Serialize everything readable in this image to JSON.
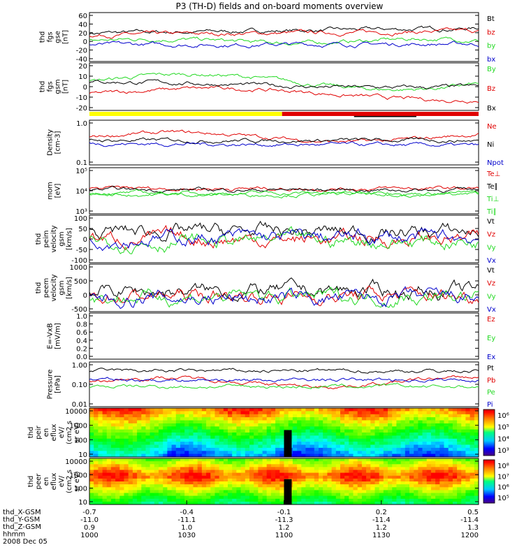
{
  "title": "P3 (TH-D) fields and on-board moments overview",
  "colors": {
    "black": "#000000",
    "red": "#e00000",
    "green": "#22d922",
    "blue": "#0000cc",
    "yellow": "#ffff00"
  },
  "time_axis": {
    "row_labels": [
      "thd_X-GSM",
      "thd_Y-GSM",
      "thd_Z-GSM",
      "hhmm",
      "2008 Dec 05"
    ],
    "ticks": [
      {
        "x": "-0.7",
        "y": "-11.0",
        "z": "0.9",
        "t": "1000"
      },
      {
        "x": "-0.4",
        "y": "-11.1",
        "z": "1.0",
        "t": "1030"
      },
      {
        "x": "-0.1",
        "y": "-11.3",
        "z": "1.2",
        "t": "1100"
      },
      {
        "x": "0.2",
        "y": "-11.4",
        "z": "1.2",
        "t": "1130"
      },
      {
        "x": "0.5",
        "y": "-11.4",
        "z": "1.3",
        "t": "1200"
      }
    ]
  },
  "chart_data": [
    {
      "type": "line",
      "ylabel": [
        "thd",
        "fgs",
        "gse",
        "[nT]"
      ],
      "yticks": [
        "60",
        "40",
        "20",
        "0",
        "-20",
        "-40"
      ],
      "yrange": [
        -40,
        60
      ],
      "legend": [
        {
          "name": "Bt",
          "color": "#000000"
        },
        {
          "name": "bz",
          "color": "#e00000"
        },
        {
          "name": "by",
          "color": "#22d922"
        },
        {
          "name": "bx",
          "color": "#0000cc"
        }
      ]
    },
    {
      "type": "line",
      "ylabel": [
        "thd",
        "fgs",
        "gsm",
        "[nT]"
      ],
      "yticks": [
        "20",
        "10",
        "0",
        "-10",
        "-20"
      ],
      "yrange": [
        -25,
        25
      ],
      "legend": [
        {
          "name": "By",
          "color": "#22d922"
        },
        {
          "name": "Bz",
          "color": "#e00000"
        },
        {
          "name": "Bx",
          "color": "#000000"
        }
      ]
    },
    {
      "type": "line",
      "ylabel": [
        "Density",
        "[cm-3]"
      ],
      "yticks": [
        "1.0",
        "0.1"
      ],
      "log": true,
      "legend": [
        {
          "name": "Ne",
          "color": "#e00000"
        },
        {
          "name": "Ni",
          "color": "#000000"
        },
        {
          "name": "Npot",
          "color": "#0000cc"
        }
      ]
    },
    {
      "type": "line",
      "ylabel": [
        "mom",
        "[eV]"
      ],
      "yticks": [
        "10⁵",
        "10⁴",
        "10³"
      ],
      "log": true,
      "legend": [
        {
          "name": "Te⊥",
          "color": "#e00000"
        },
        {
          "name": "Te∥",
          "color": "#000000"
        },
        {
          "name": "Ti⊥",
          "color": "#22d922"
        },
        {
          "name": "Ti∥",
          "color": "#22d922"
        }
      ]
    },
    {
      "type": "line",
      "ylabel": [
        "thd",
        "peim",
        "velocity",
        "gsm",
        "[km/s]"
      ],
      "yticks": [
        "100",
        "50",
        "0",
        "-50",
        "-100"
      ],
      "yrange": [
        -100,
        100
      ],
      "legend": [
        {
          "name": "Vt",
          "color": "#000000"
        },
        {
          "name": "Vz",
          "color": "#e00000"
        },
        {
          "name": "Vy",
          "color": "#22d922"
        },
        {
          "name": "Vx",
          "color": "#0000cc"
        }
      ]
    },
    {
      "type": "line",
      "ylabel": [
        "thd",
        "peem",
        "velocity",
        "gsm",
        "[km/s]"
      ],
      "yticks": [
        "1000",
        "500",
        "0",
        "-500"
      ],
      "yrange": [
        -500,
        1000
      ],
      "legend": [
        {
          "name": "Vt",
          "color": "#000000"
        },
        {
          "name": "Vz",
          "color": "#e00000"
        },
        {
          "name": "Vy",
          "color": "#22d922"
        },
        {
          "name": "Vx",
          "color": "#0000cc"
        }
      ]
    },
    {
      "type": "line",
      "ylabel": [
        "E=-VxB",
        "[mV/m]"
      ],
      "yticks": [
        "1.0",
        "0.8",
        "0.6",
        "0.4",
        "0.2",
        "0.0"
      ],
      "yrange": [
        0,
        1
      ],
      "legend": [
        {
          "name": "Ez",
          "color": "#e00000"
        },
        {
          "name": "Ey",
          "color": "#22d922"
        },
        {
          "name": "Ex",
          "color": "#0000cc"
        }
      ]
    },
    {
      "type": "line",
      "ylabel": [
        "Pressure",
        "[nPa]"
      ],
      "yticks": [
        "1.00",
        "0.10",
        "0.01"
      ],
      "log": true,
      "legend": [
        {
          "name": "Pt",
          "color": "#000000"
        },
        {
          "name": "Pb",
          "color": "#e00000"
        },
        {
          "name": "Pe",
          "color": "#22d922"
        },
        {
          "name": "Pi",
          "color": "#0000cc"
        }
      ]
    },
    {
      "type": "heatmap",
      "ylabel": [
        "thd",
        "peir",
        "en",
        "eflux",
        "eV/",
        "(cm2 s",
        "sr eV)"
      ],
      "yticks": [
        "10000",
        "1000",
        "100",
        "10"
      ],
      "colorbar_ticks": [
        "10⁶",
        "10⁵",
        "10⁴",
        "10³"
      ]
    },
    {
      "type": "heatmap",
      "ylabel": [
        "thd",
        "peer",
        "en",
        "eflux",
        "eV/",
        "(cm2 s",
        "sr eV)"
      ],
      "yticks": [
        "10000",
        "1000",
        "100",
        "10"
      ],
      "colorbar_ticks": [
        "10⁸",
        "10⁷",
        "10⁶",
        "10⁵"
      ]
    }
  ]
}
